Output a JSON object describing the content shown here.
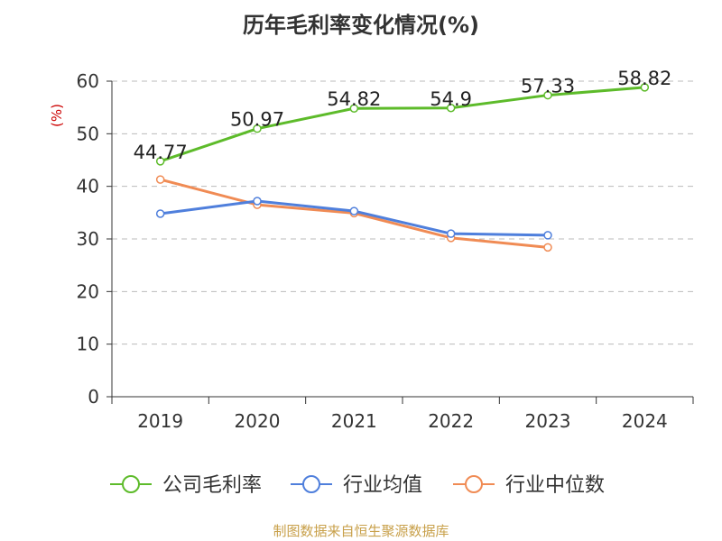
{
  "chart_data": {
    "type": "line",
    "title": "历年毛利率变化情况(%)",
    "y_unit": "(%)",
    "categories": [
      "2019",
      "2020",
      "2021",
      "2022",
      "2023",
      "2024"
    ],
    "y_ticks": [
      "0",
      "10",
      "20",
      "30",
      "40",
      "50",
      "60"
    ],
    "ylim": [
      0,
      60
    ],
    "grid": true,
    "legend_position": "bottom",
    "series": [
      {
        "name": "公司毛利率",
        "color": "#5dbb2a",
        "values": [
          44.77,
          50.97,
          54.82,
          54.9,
          57.33,
          58.82
        ],
        "labels": [
          "44.77",
          "50.97",
          "54.82",
          "54.9",
          "57.33",
          "58.82"
        ]
      },
      {
        "name": "行业均值",
        "color": "#4f7fdc",
        "values": [
          34.8,
          37.2,
          35.3,
          31.0,
          30.7,
          null
        ]
      },
      {
        "name": "行业中位数",
        "color": "#f08b54",
        "values": [
          41.3,
          36.5,
          34.9,
          30.2,
          28.4,
          null
        ]
      }
    ]
  },
  "footer": "制图数据来自恒生聚源数据库"
}
